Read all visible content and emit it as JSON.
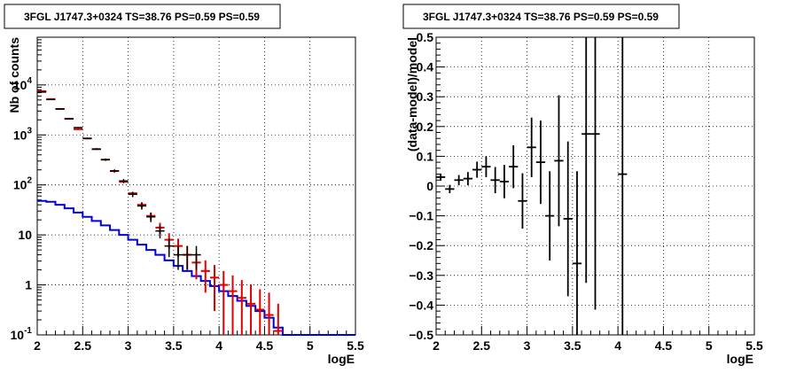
{
  "colors": {
    "data": "#000000",
    "model_total": "#e00000",
    "model_source": "#0000dd",
    "grid": "#000000"
  },
  "chart_data": [
    {
      "type": "histogram",
      "title": "3FGL J1747.3+0324 TS=38.76 PS=0.59 PS=0.59",
      "xlabel": "logE",
      "ylabel": "Nb of counts",
      "xlim": [
        2,
        5.5
      ],
      "ylim": [
        0.1,
        90000
      ],
      "yscale": "log",
      "grid": true,
      "x_ticks": [
        "2",
        "2.5",
        "3",
        "3.5",
        "4",
        "4.5",
        "5",
        "5.5"
      ],
      "y_ticks": [
        "10^-1",
        "1",
        "10",
        "10^2",
        "10^3",
        "10^4"
      ],
      "bin_edges": [
        2.0,
        2.1,
        2.2,
        2.3,
        2.4,
        2.5,
        2.6,
        2.7,
        2.8,
        2.9,
        3.0,
        3.1,
        3.2,
        3.3,
        3.4,
        3.5,
        3.6,
        3.7,
        3.8,
        3.9,
        4.0,
        4.1,
        4.2,
        4.3,
        4.4,
        4.5,
        4.6,
        4.7,
        4.8,
        4.9,
        5.0,
        5.1,
        5.2,
        5.3,
        5.4,
        5.5
      ],
      "series": [
        {
          "style": "data-points",
          "color": "#000000",
          "values": [
            7200,
            5100,
            3300,
            2100,
            1400,
            850,
            520,
            320,
            190,
            120,
            65,
            38,
            23,
            12,
            6,
            4,
            4,
            4,
            0,
            0,
            0,
            0,
            0,
            0,
            0,
            0,
            0,
            0,
            0,
            0,
            0,
            0,
            0,
            0,
            0
          ],
          "err": [
            85,
            71,
            57,
            46,
            37,
            29,
            23,
            18,
            14,
            11,
            8,
            6,
            5,
            3.5,
            2.4,
            2,
            2,
            2,
            0,
            0,
            0,
            0,
            0,
            0,
            0,
            0,
            0,
            0,
            0,
            0,
            0,
            0,
            0,
            0,
            0
          ]
        },
        {
          "style": "model-points",
          "color": "#e00000",
          "values": [
            7500,
            5200,
            3300,
            2100,
            1300,
            850,
            520,
            320,
            190,
            115,
            68,
            40,
            24,
            14,
            8,
            6,
            4,
            2.8,
            1.9,
            1.4,
            1.0,
            0.75,
            0.55,
            0.42,
            0.32,
            0.25,
            0.12,
            0,
            0,
            0,
            0,
            0,
            0,
            0,
            0
          ],
          "err": [
            0,
            0,
            0,
            0,
            0,
            0,
            0,
            0,
            0,
            0,
            0,
            5,
            4,
            3.5,
            2.8,
            2.4,
            2,
            1.5,
            1.2,
            1.1,
            0.9,
            0.8,
            0.7,
            0.6,
            0.5,
            0.45,
            0.3,
            0,
            0,
            0,
            0,
            0,
            0,
            0,
            0
          ]
        },
        {
          "style": "step",
          "color": "#0000dd",
          "values": [
            48,
            46,
            40,
            34,
            28,
            23,
            19,
            15.5,
            12.5,
            10,
            8,
            6.4,
            5,
            4,
            3.1,
            2.4,
            1.9,
            1.5,
            1.2,
            0.95,
            0.75,
            0.6,
            0.48,
            0.38,
            0.3,
            0.22,
            0.14,
            0.1,
            0.1,
            0.1,
            0.1,
            0.1,
            0.1,
            0.1,
            0.1
          ]
        }
      ]
    },
    {
      "type": "scatter",
      "title": "3FGL J1747.3+0324 TS=38.76 PS=0.59 PS=0.59",
      "xlabel": "logE",
      "ylabel": "(data-model)/model",
      "xlim": [
        2,
        5.5
      ],
      "ylim": [
        -0.5,
        0.5
      ],
      "grid": true,
      "x_ticks": [
        "2",
        "2.5",
        "3",
        "3.5",
        "4",
        "4.5",
        "5",
        "5.5"
      ],
      "y_ticks": [
        "−0.5",
        "−0.4",
        "−0.3",
        "−0.2",
        "−0.1",
        "0",
        "0.1",
        "0.2",
        "0.3",
        "0.4",
        "0.5"
      ],
      "points": [
        {
          "x": 2.05,
          "y": 0.03,
          "err": 0.012
        },
        {
          "x": 2.15,
          "y": -0.01,
          "err": 0.014
        },
        {
          "x": 2.25,
          "y": 0.02,
          "err": 0.017
        },
        {
          "x": 2.35,
          "y": 0.025,
          "err": 0.022
        },
        {
          "x": 2.45,
          "y": 0.055,
          "err": 0.027
        },
        {
          "x": 2.55,
          "y": 0.065,
          "err": 0.035
        },
        {
          "x": 2.65,
          "y": 0.02,
          "err": 0.044
        },
        {
          "x": 2.75,
          "y": 0.015,
          "err": 0.056
        },
        {
          "x": 2.85,
          "y": 0.065,
          "err": 0.072
        },
        {
          "x": 2.95,
          "y": -0.05,
          "err": 0.093
        },
        {
          "x": 3.05,
          "y": 0.13,
          "err": 0.1
        },
        {
          "x": 3.15,
          "y": 0.08,
          "err": 0.14
        },
        {
          "x": 3.25,
          "y": -0.1,
          "err": 0.15
        },
        {
          "x": 3.35,
          "y": 0.085,
          "err": 0.22
        },
        {
          "x": 3.45,
          "y": -0.11,
          "err": 0.26
        },
        {
          "x": 3.55,
          "y": -0.26,
          "err": 0.31
        },
        {
          "x": 3.65,
          "y": 0.175,
          "err": 0.5
        },
        {
          "x": 3.75,
          "y": 0.175,
          "err": 0.59
        },
        {
          "x": 4.05,
          "y": 0.04,
          "err": 1.0
        }
      ]
    }
  ]
}
